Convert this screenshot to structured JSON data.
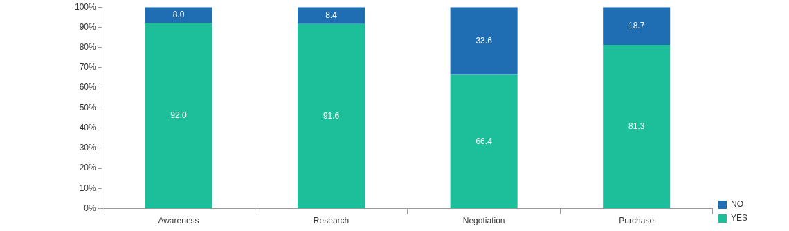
{
  "chart_data": {
    "type": "bar",
    "categories": [
      "Awareness",
      "Research",
      "Negotiation",
      "Purchase"
    ],
    "series": [
      {
        "name": "YES",
        "color": "#1dbe9a",
        "values": [
          92.0,
          91.6,
          66.4,
          81.3
        ],
        "value_labels": [
          "92.0",
          "91.6",
          "66.4",
          "81.3"
        ]
      },
      {
        "name": "NO",
        "color": "#1f6db3",
        "values": [
          8.0,
          8.4,
          33.6,
          18.7
        ],
        "value_labels": [
          "8.0",
          "8.4",
          "33.6",
          "18.7"
        ]
      }
    ],
    "ylim": [
      0,
      100
    ],
    "yticks": [
      {
        "value": 0,
        "label": "0%"
      },
      {
        "value": 10,
        "label": "10%"
      },
      {
        "value": 20,
        "label": "20%"
      },
      {
        "value": 30,
        "label": "30%"
      },
      {
        "value": 40,
        "label": "40%"
      },
      {
        "value": 50,
        "label": "50%"
      },
      {
        "value": 60,
        "label": "60%"
      },
      {
        "value": 70,
        "label": "70%"
      },
      {
        "value": 80,
        "label": "80%"
      },
      {
        "value": 90,
        "label": "90%"
      },
      {
        "value": 100,
        "label": "100%"
      }
    ],
    "stacked": true,
    "data_labels": true,
    "grid": false,
    "legend": "lower right"
  }
}
